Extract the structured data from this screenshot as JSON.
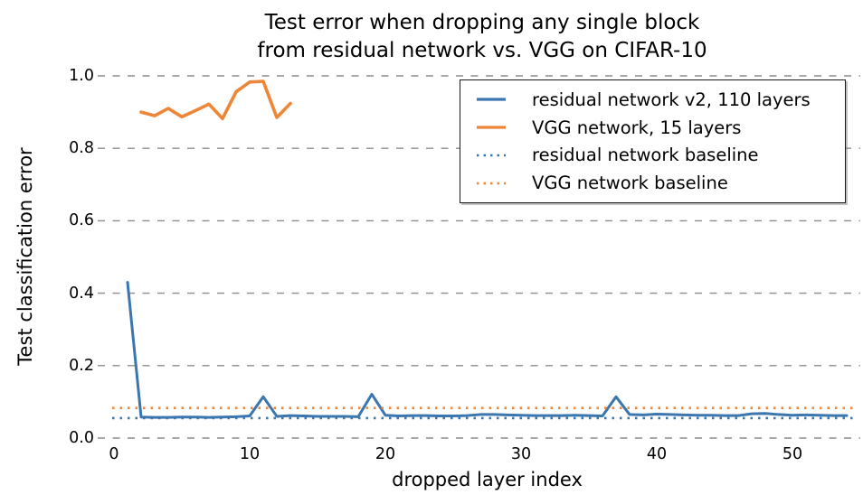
{
  "title": {
    "text": "Test error when dropping any single block\nfrom residual network vs. VGG on CIFAR-10"
  },
  "axes": {
    "x_label": "dropped layer index",
    "y_label": "Test classification error"
  },
  "colors": {
    "residual": "#3B76AF",
    "vgg": "#EE8637",
    "grid": "#8c8c8c",
    "text": "#000000"
  },
  "legend": {
    "items": [
      {
        "label": "residual network v2, 110 layers",
        "color": "#3B76AF",
        "style": "solid"
      },
      {
        "label": "VGG network, 15 layers",
        "color": "#EE8637",
        "style": "solid"
      },
      {
        "label": "residual network baseline",
        "color": "#3B76AF",
        "style": "dotted"
      },
      {
        "label": "VGG network baseline",
        "color": "#EE8637",
        "style": "dotted"
      }
    ]
  },
  "chart_data": {
    "type": "line",
    "title": "Test error when dropping any single block from residual network vs. VGG on CIFAR-10",
    "xlabel": "dropped layer index",
    "ylabel": "Test classification error",
    "xlim": [
      0,
      55.2
    ],
    "ylim": [
      0,
      1.0
    ],
    "xtick_values": [
      0,
      10,
      20,
      30,
      40,
      50
    ],
    "xtick_labels": [
      "0",
      "10",
      "20",
      "30",
      "40",
      "50"
    ],
    "ytick_values": [
      0.0,
      0.2,
      0.4,
      0.6,
      0.8,
      1.0
    ],
    "ytick_labels": [
      "0.0",
      "0.2",
      "0.4",
      "0.6",
      "0.8",
      "1.0"
    ],
    "grid": "horizontal-dashed",
    "legend_position": "upper right",
    "series": [
      {
        "name": "residual network v2, 110 layers",
        "color": "#3B76AF",
        "style": "solid",
        "x": [
          1,
          2,
          3,
          4,
          5,
          6,
          7,
          8,
          9,
          10,
          11,
          12,
          13,
          14,
          15,
          16,
          17,
          18,
          19,
          20,
          21,
          22,
          23,
          24,
          25,
          26,
          27,
          28,
          29,
          30,
          31,
          32,
          33,
          34,
          35,
          36,
          37,
          38,
          39,
          40,
          41,
          42,
          43,
          44,
          45,
          46,
          47,
          48,
          49,
          50,
          51,
          52,
          53,
          54
        ],
        "y": [
          0.43,
          0.058,
          0.057,
          0.057,
          0.058,
          0.058,
          0.057,
          0.058,
          0.059,
          0.061,
          0.114,
          0.06,
          0.062,
          0.061,
          0.06,
          0.06,
          0.06,
          0.059,
          0.121,
          0.063,
          0.061,
          0.062,
          0.062,
          0.061,
          0.061,
          0.062,
          0.065,
          0.065,
          0.064,
          0.063,
          0.062,
          0.062,
          0.062,
          0.063,
          0.062,
          0.061,
          0.114,
          0.065,
          0.064,
          0.066,
          0.065,
          0.064,
          0.063,
          0.063,
          0.062,
          0.062,
          0.067,
          0.068,
          0.065,
          0.063,
          0.064,
          0.063,
          0.062,
          0.062
        ]
      },
      {
        "name": "VGG network, 15 layers",
        "color": "#EE8637",
        "style": "solid",
        "x": [
          2,
          3,
          4,
          5,
          6,
          7,
          8,
          9,
          10,
          11,
          12,
          13
        ],
        "y": [
          0.9,
          0.89,
          0.91,
          0.887,
          0.904,
          0.922,
          0.882,
          0.956,
          0.983,
          0.985,
          0.885,
          0.924
        ]
      },
      {
        "name": "residual network baseline",
        "color": "#3B76AF",
        "style": "dotted",
        "baseline": 0.055
      },
      {
        "name": "VGG network baseline",
        "color": "#EE8637",
        "style": "dotted",
        "baseline": 0.083
      }
    ]
  }
}
